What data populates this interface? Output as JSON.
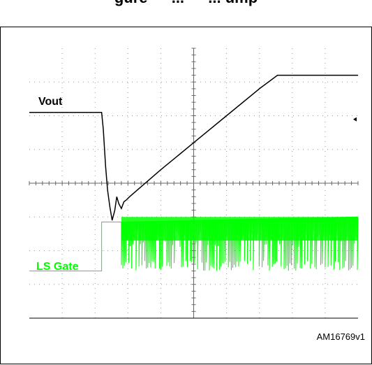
{
  "header": {
    "title_fragment": "gure — ... — ... ump"
  },
  "figure_id": "AM16769v1",
  "chart_data": {
    "type": "line",
    "title": "",
    "xlabel": "",
    "ylabel": "",
    "grid": true,
    "divisions": {
      "x": 10,
      "y": 8
    },
    "series": [
      {
        "name": "Vout",
        "color": "#000000",
        "points": [
          [
            0,
            6.1
          ],
          [
            2.2,
            6.1
          ],
          [
            2.25,
            5.6
          ],
          [
            2.32,
            4.5
          ],
          [
            2.38,
            3.8
          ],
          [
            2.45,
            3.3
          ],
          [
            2.52,
            2.9
          ],
          [
            2.6,
            3.2
          ],
          [
            2.66,
            3.6
          ],
          [
            2.72,
            3.4
          ],
          [
            2.8,
            3.25
          ],
          [
            2.88,
            3.45
          ],
          [
            2.95,
            3.5
          ],
          [
            3.05,
            3.6
          ],
          [
            4.0,
            4.4
          ],
          [
            5.0,
            5.2
          ],
          [
            6.0,
            6.0
          ],
          [
            7.0,
            6.8
          ],
          [
            7.55,
            7.2
          ],
          [
            10,
            7.2
          ]
        ]
      },
      {
        "name": "LS Gate",
        "color": "#00ff00",
        "low": 1.4,
        "high": 2.85,
        "mid": 2.1,
        "rise_x": 2.2,
        "switch_start_x": 2.8,
        "end_x": 10,
        "band_top": [
          2.85,
          3.0
        ]
      }
    ],
    "labels": [
      {
        "text": "Vout",
        "series": "Vout"
      },
      {
        "text": "LS Gate",
        "series": "LS Gate"
      }
    ]
  }
}
